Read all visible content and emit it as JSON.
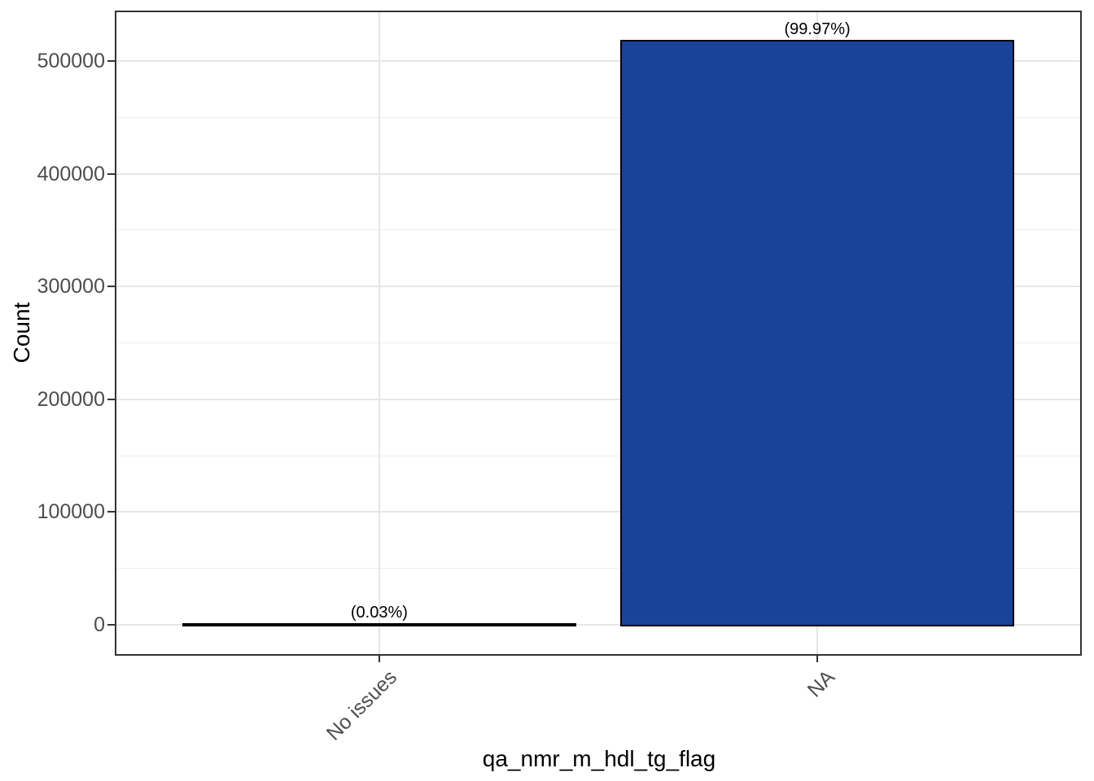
{
  "chart_data": {
    "type": "bar",
    "title": "",
    "xlabel": "qa_nmr_m_hdl_tg_flag",
    "ylabel": "Count",
    "categories": [
      "No issues",
      "NA"
    ],
    "values": [
      155,
      517300
    ],
    "bar_labels": [
      "(0.03%)",
      "(99.97%)"
    ],
    "yticks": [
      0,
      100000,
      200000,
      300000,
      400000,
      500000
    ],
    "ytick_labels": [
      "0",
      "100000",
      "200000",
      "300000",
      "400000",
      "500000"
    ],
    "minor_yticks": [
      50000,
      150000,
      250000,
      350000,
      450000
    ],
    "ylim": [
      -25900,
      543200
    ],
    "bar_width_fraction": 0.9,
    "grid": true,
    "legend": "none",
    "colors": {
      "bar_fill": "#1B429B",
      "bar_stroke": "#000000",
      "grid_major": "#E6E6E6",
      "grid_minor": "#EDEDED",
      "panel_border": "#333333",
      "tick_mark": "#333333",
      "tick_label": "#4D4D4D",
      "axis_title": "#000000",
      "background": "#FFFFFF"
    }
  }
}
